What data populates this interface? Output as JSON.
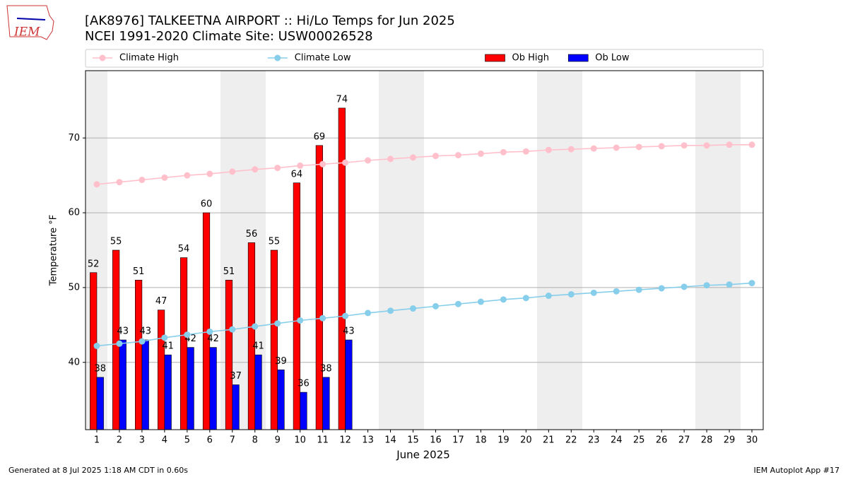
{
  "chart_data": {
    "type": "bar",
    "logo": "IEM",
    "title": "[AK8976] TALKEETNA AIRPORT :: Hi/Lo Temps for Jun 2025",
    "subtitle": "NCEI 1991-2020 Climate Site: USW00026528",
    "x_label": "June 2025",
    "y_label": "Temperature °F",
    "x": [
      1,
      2,
      3,
      4,
      5,
      6,
      7,
      8,
      9,
      10,
      11,
      12,
      13,
      14,
      15,
      16,
      17,
      18,
      19,
      20,
      21,
      22,
      23,
      24,
      25,
      26,
      27,
      28,
      29,
      30
    ],
    "xlim": [
      0.5,
      30.5
    ],
    "xticks": [
      1,
      2,
      3,
      4,
      5,
      6,
      7,
      8,
      9,
      10,
      11,
      12,
      13,
      14,
      15,
      16,
      17,
      18,
      19,
      20,
      21,
      22,
      23,
      24,
      25,
      26,
      27,
      28,
      29,
      30
    ],
    "ylim": [
      31,
      79
    ],
    "yticks": [
      40,
      50,
      60,
      70
    ],
    "grid": true,
    "legend": "top",
    "series": [
      {
        "name": "Climate High",
        "type": "line",
        "color": "#ffc0cb",
        "values": [
          63.8,
          64.1,
          64.4,
          64.7,
          65.0,
          65.2,
          65.5,
          65.8,
          66.0,
          66.3,
          66.5,
          66.7,
          67.0,
          67.2,
          67.4,
          67.6,
          67.7,
          67.9,
          68.1,
          68.2,
          68.4,
          68.5,
          68.6,
          68.7,
          68.8,
          68.9,
          69.0,
          69.0,
          69.1,
          69.1
        ]
      },
      {
        "name": "Climate Low",
        "type": "line",
        "color": "#87ceeb",
        "values": [
          42.2,
          42.5,
          42.8,
          43.3,
          43.7,
          44.1,
          44.4,
          44.8,
          45.2,
          45.6,
          45.9,
          46.2,
          46.6,
          46.9,
          47.2,
          47.5,
          47.8,
          48.1,
          48.4,
          48.6,
          48.9,
          49.1,
          49.3,
          49.5,
          49.7,
          49.9,
          50.1,
          50.3,
          50.4,
          50.6
        ]
      },
      {
        "name": "Ob High",
        "type": "bar",
        "color": "#ff0000",
        "values": [
          52,
          55,
          51,
          47,
          54,
          60,
          51,
          56,
          55,
          64,
          69,
          74,
          null,
          null,
          null,
          null,
          null,
          null,
          null,
          null,
          null,
          null,
          null,
          null,
          null,
          null,
          null,
          null,
          null,
          null
        ]
      },
      {
        "name": "Ob Low",
        "type": "bar",
        "color": "#0000ff",
        "values": [
          38,
          43,
          43,
          41,
          42,
          42,
          37,
          41,
          39,
          36,
          38,
          43,
          null,
          null,
          null,
          null,
          null,
          null,
          null,
          null,
          null,
          null,
          null,
          null,
          null,
          null,
          null,
          null,
          null,
          null
        ]
      }
    ],
    "footer_left": "Generated at 8 Jul 2025 1:18 AM CDT in 0.60s",
    "footer_right": "IEM Autoplot App #17"
  }
}
